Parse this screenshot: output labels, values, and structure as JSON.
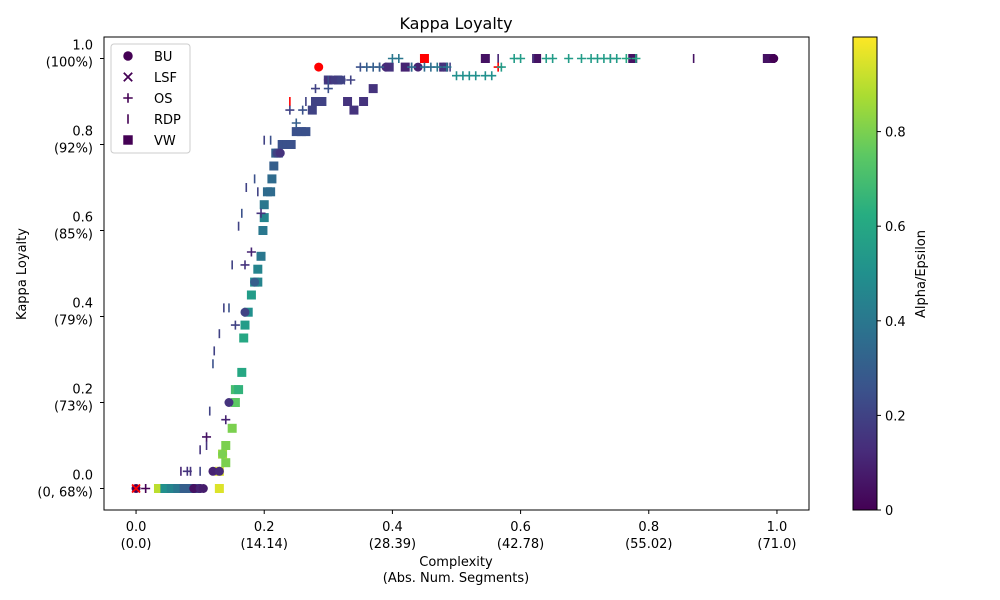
{
  "chart_data": {
    "type": "scatter",
    "title": "Kappa Loyalty",
    "xlabel": [
      "Complexity",
      "(Abs. Num. Segments)"
    ],
    "ylabel": "Kappa Loyalty",
    "xlim": [
      -0.05,
      1.05
    ],
    "ylim": [
      -0.05,
      1.05
    ],
    "x_ticks": [
      {
        "value": 0.0,
        "label": "0.0",
        "sublabel": "(0.0)"
      },
      {
        "value": 0.2,
        "label": "0.2",
        "sublabel": "(14.14)"
      },
      {
        "value": 0.4,
        "label": "0.4",
        "sublabel": "(28.39)"
      },
      {
        "value": 0.6,
        "label": "0.6",
        "sublabel": "(42.78)"
      },
      {
        "value": 0.8,
        "label": "0.8",
        "sublabel": "(55.02)"
      },
      {
        "value": 1.0,
        "label": "1.0",
        "sublabel": "(71.0)"
      }
    ],
    "y_ticks": [
      {
        "value": 0.0,
        "label": "0.0",
        "sublabel": "(0, 68%)"
      },
      {
        "value": 0.2,
        "label": "0.2",
        "sublabel": "(73%)"
      },
      {
        "value": 0.4,
        "label": "0.4",
        "sublabel": "(79%)"
      },
      {
        "value": 0.6,
        "label": "0.6",
        "sublabel": "(85%)"
      },
      {
        "value": 0.8,
        "label": "0.8",
        "sublabel": "(92%)"
      },
      {
        "value": 1.0,
        "label": "1.0",
        "sublabel": "(100%)"
      }
    ],
    "grid": false,
    "legend_position": "top-left",
    "legend": [
      {
        "name": "BU",
        "marker": "circle"
      },
      {
        "name": "LSF",
        "marker": "x"
      },
      {
        "name": "OS",
        "marker": "plus"
      },
      {
        "name": "RDP",
        "marker": "vline"
      },
      {
        "name": "VW",
        "marker": "square"
      }
    ],
    "colorbar": {
      "label": "Alpha/Epsilon",
      "colormap": "viridis",
      "range": [
        0,
        1
      ],
      "ticks": [
        {
          "value": 0.0,
          "label": "0"
        },
        {
          "value": 0.2,
          "label": "0.2"
        },
        {
          "value": 0.4,
          "label": "0.4"
        },
        {
          "value": 0.6,
          "label": "0.6"
        },
        {
          "value": 0.8,
          "label": "0.8"
        }
      ]
    },
    "highlight_color": "#ff0000",
    "series": [
      {
        "name": "BU",
        "marker": "circle",
        "points": [
          [
            0.0,
            0.0,
            0.0
          ],
          [
            0.09,
            0.0,
            0.05
          ],
          [
            0.1,
            0.0,
            0.1
          ],
          [
            0.105,
            0.0,
            0.08
          ],
          [
            0.12,
            0.04,
            0.1
          ],
          [
            0.13,
            0.04,
            0.12
          ],
          [
            0.135,
            0.08,
            0.8
          ],
          [
            0.145,
            0.2,
            0.15
          ],
          [
            0.17,
            0.41,
            0.2
          ],
          [
            0.185,
            0.48,
            0.3
          ],
          [
            0.22,
            0.78,
            0.2
          ],
          [
            0.225,
            0.78,
            0.15
          ],
          [
            0.285,
            0.98,
            0.0,
            "highlight"
          ],
          [
            0.3,
            0.95,
            0.15
          ],
          [
            0.31,
            0.95,
            0.18
          ],
          [
            0.32,
            0.95,
            0.2
          ],
          [
            0.39,
            0.98,
            0.12
          ],
          [
            0.44,
            0.98,
            0.1
          ],
          [
            0.48,
            0.98,
            0.15
          ],
          [
            0.995,
            1.0,
            0.0
          ]
        ]
      },
      {
        "name": "LSF",
        "marker": "x",
        "points": [
          [
            0.0,
            0.0,
            0.0,
            "highlight"
          ]
        ]
      },
      {
        "name": "OS",
        "marker": "plus",
        "points": [
          [
            0.015,
            0.0,
            0.0
          ],
          [
            0.08,
            0.04,
            0.15
          ],
          [
            0.11,
            0.12,
            0.05
          ],
          [
            0.14,
            0.16,
            0.1
          ],
          [
            0.155,
            0.38,
            0.2
          ],
          [
            0.17,
            0.52,
            0.15
          ],
          [
            0.18,
            0.55,
            0.1
          ],
          [
            0.195,
            0.64,
            0.15
          ],
          [
            0.24,
            0.88,
            0.2
          ],
          [
            0.25,
            0.85,
            0.3
          ],
          [
            0.26,
            0.88,
            0.25
          ],
          [
            0.28,
            0.93,
            0.2
          ],
          [
            0.3,
            0.93,
            0.25
          ],
          [
            0.32,
            0.95,
            0.2
          ],
          [
            0.335,
            0.95,
            0.2
          ],
          [
            0.35,
            0.98,
            0.25
          ],
          [
            0.36,
            0.98,
            0.3
          ],
          [
            0.37,
            0.98,
            0.3
          ],
          [
            0.38,
            0.98,
            0.3
          ],
          [
            0.4,
            1.0,
            0.4
          ],
          [
            0.41,
            1.0,
            0.4
          ],
          [
            0.43,
            0.98,
            0.35
          ],
          [
            0.45,
            0.98,
            0.35
          ],
          [
            0.46,
            0.98,
            0.35
          ],
          [
            0.47,
            0.98,
            0.4
          ],
          [
            0.485,
            0.98,
            0.4
          ],
          [
            0.5,
            0.96,
            0.5
          ],
          [
            0.51,
            0.96,
            0.5
          ],
          [
            0.52,
            0.96,
            0.5
          ],
          [
            0.53,
            0.96,
            0.5
          ],
          [
            0.545,
            0.96,
            0.5
          ],
          [
            0.555,
            0.96,
            0.5
          ],
          [
            0.565,
            0.98,
            0.0,
            "highlight"
          ],
          [
            0.57,
            0.98,
            0.55
          ],
          [
            0.59,
            1.0,
            0.55
          ],
          [
            0.6,
            1.0,
            0.55
          ],
          [
            0.64,
            1.0,
            0.55
          ],
          [
            0.65,
            1.0,
            0.55
          ],
          [
            0.675,
            1.0,
            0.55
          ],
          [
            0.695,
            1.0,
            0.55
          ],
          [
            0.71,
            1.0,
            0.55
          ],
          [
            0.72,
            1.0,
            0.55
          ],
          [
            0.73,
            1.0,
            0.55
          ],
          [
            0.74,
            1.0,
            0.55
          ],
          [
            0.75,
            1.0,
            0.55
          ],
          [
            0.765,
            1.0,
            0.6
          ],
          [
            0.78,
            1.0,
            0.6
          ]
        ]
      },
      {
        "name": "RDP",
        "marker": "vline",
        "points": [
          [
            0.07,
            0.04,
            0.1
          ],
          [
            0.085,
            0.04,
            0.15
          ],
          [
            0.1,
            0.09,
            0.15
          ],
          [
            0.1,
            0.04,
            0.2
          ],
          [
            0.11,
            0.1,
            0.15
          ],
          [
            0.115,
            0.18,
            0.2
          ],
          [
            0.12,
            0.29,
            0.25
          ],
          [
            0.122,
            0.32,
            0.2
          ],
          [
            0.13,
            0.36,
            0.2
          ],
          [
            0.137,
            0.42,
            0.2
          ],
          [
            0.145,
            0.42,
            0.25
          ],
          [
            0.15,
            0.52,
            0.2
          ],
          [
            0.16,
            0.61,
            0.2
          ],
          [
            0.165,
            0.64,
            0.25
          ],
          [
            0.172,
            0.7,
            0.2
          ],
          [
            0.185,
            0.72,
            0.25
          ],
          [
            0.19,
            0.69,
            0.2
          ],
          [
            0.2,
            0.81,
            0.2
          ],
          [
            0.21,
            0.81,
            0.25
          ],
          [
            0.24,
            0.9,
            0.0,
            "highlight"
          ],
          [
            0.265,
            0.9,
            0.2
          ],
          [
            0.3,
            0.95,
            0.25
          ],
          [
            0.325,
            0.95,
            0.2
          ],
          [
            0.38,
            0.98,
            0.2
          ],
          [
            0.43,
            0.98,
            0.2
          ],
          [
            0.49,
            0.98,
            0.2
          ],
          [
            0.565,
            1.0,
            0.1
          ],
          [
            0.62,
            1.0,
            0.15
          ],
          [
            0.74,
            1.0,
            0.05
          ],
          [
            0.87,
            1.0,
            0.05
          ]
        ]
      },
      {
        "name": "VW",
        "marker": "square",
        "points": [
          [
            0.035,
            0.0,
            0.9
          ],
          [
            0.045,
            0.0,
            0.5
          ],
          [
            0.055,
            0.0,
            0.45
          ],
          [
            0.065,
            0.0,
            0.4
          ],
          [
            0.075,
            0.0,
            0.3
          ],
          [
            0.085,
            0.0,
            0.3
          ],
          [
            0.095,
            0.0,
            0.2
          ],
          [
            0.13,
            0.0,
            0.95
          ],
          [
            0.13,
            0.04,
            0.95
          ],
          [
            0.14,
            0.06,
            0.8
          ],
          [
            0.135,
            0.08,
            0.85
          ],
          [
            0.14,
            0.1,
            0.8
          ],
          [
            0.15,
            0.14,
            0.8
          ],
          [
            0.155,
            0.2,
            0.75
          ],
          [
            0.155,
            0.23,
            0.7
          ],
          [
            0.16,
            0.23,
            0.65
          ],
          [
            0.165,
            0.27,
            0.6
          ],
          [
            0.168,
            0.35,
            0.6
          ],
          [
            0.17,
            0.38,
            0.55
          ],
          [
            0.175,
            0.41,
            0.5
          ],
          [
            0.18,
            0.45,
            0.55
          ],
          [
            0.185,
            0.48,
            0.5
          ],
          [
            0.19,
            0.48,
            0.45
          ],
          [
            0.19,
            0.51,
            0.45
          ],
          [
            0.195,
            0.54,
            0.4
          ],
          [
            0.198,
            0.6,
            0.4
          ],
          [
            0.2,
            0.63,
            0.45
          ],
          [
            0.2,
            0.66,
            0.4
          ],
          [
            0.205,
            0.69,
            0.35
          ],
          [
            0.21,
            0.69,
            0.35
          ],
          [
            0.212,
            0.72,
            0.35
          ],
          [
            0.215,
            0.75,
            0.3
          ],
          [
            0.218,
            0.78,
            0.3
          ],
          [
            0.222,
            0.78,
            0.3
          ],
          [
            0.228,
            0.8,
            0.25
          ],
          [
            0.235,
            0.8,
            0.25
          ],
          [
            0.242,
            0.8,
            0.25
          ],
          [
            0.25,
            0.83,
            0.25
          ],
          [
            0.258,
            0.83,
            0.25
          ],
          [
            0.265,
            0.83,
            0.25
          ],
          [
            0.275,
            0.88,
            0.2
          ],
          [
            0.28,
            0.9,
            0.2
          ],
          [
            0.29,
            0.9,
            0.2
          ],
          [
            0.3,
            0.95,
            0.2
          ],
          [
            0.315,
            0.95,
            0.2
          ],
          [
            0.33,
            0.9,
            0.15
          ],
          [
            0.34,
            0.88,
            0.15
          ],
          [
            0.355,
            0.9,
            0.15
          ],
          [
            0.37,
            0.93,
            0.15
          ],
          [
            0.395,
            0.98,
            0.15
          ],
          [
            0.42,
            0.98,
            0.1
          ],
          [
            0.45,
            1.0,
            0.0,
            "highlight"
          ],
          [
            0.48,
            0.98,
            0.1
          ],
          [
            0.545,
            1.0,
            0.05
          ],
          [
            0.625,
            1.0,
            0.05
          ],
          [
            0.775,
            1.0,
            0.05
          ],
          [
            0.985,
            1.0,
            0.05
          ],
          [
            0.99,
            1.0,
            0.05
          ]
        ]
      }
    ]
  }
}
